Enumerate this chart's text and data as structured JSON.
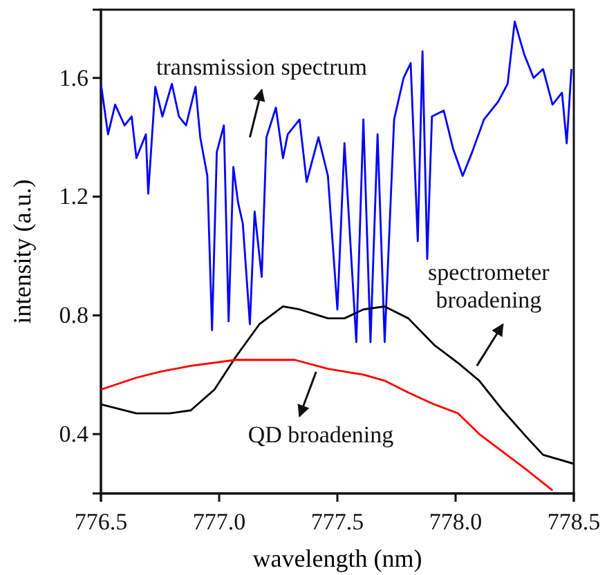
{
  "chart_data": {
    "type": "line",
    "xlabel": "wavelength (nm)",
    "ylabel": "intensity (a.u.)",
    "xlim": [
      776.5,
      778.5
    ],
    "ylim": [
      0.2,
      1.83
    ],
    "xticks": [
      776.5,
      {
        "value": 777,
        "label": "777.0"
      },
      777.5,
      {
        "value": 778,
        "label": "778.0"
      },
      778.5
    ],
    "yticks": [
      0.4,
      0.8,
      1.2,
      1.6
    ],
    "grid": false,
    "marker": "none",
    "line_style": "solid",
    "series": [
      {
        "color": "#0000ff",
        "x": [
          776.5,
          776.53,
          776.56,
          776.6,
          776.63,
          776.65,
          776.69,
          776.7,
          776.73,
          776.76,
          776.8,
          776.83,
          776.86,
          776.9,
          776.92,
          776.95,
          776.97,
          776.99,
          777.02,
          777.04,
          777.06,
          777.08,
          777.1,
          777.13,
          777.15,
          777.18,
          777.2,
          777.24,
          777.27,
          777.29,
          777.34,
          777.37,
          777.42,
          777.46,
          777.5,
          777.53,
          777.58,
          777.61,
          777.64,
          777.67,
          777.7,
          777.74,
          777.78,
          777.81,
          777.84,
          777.86,
          777.88,
          777.9,
          777.95,
          777.99,
          778.03,
          778.07,
          778.12,
          778.18,
          778.22,
          778.25,
          778.29,
          778.33,
          778.37,
          778.41,
          778.45,
          778.47,
          778.49
        ],
        "values": [
          1.58,
          1.41,
          1.51,
          1.44,
          1.47,
          1.33,
          1.41,
          1.21,
          1.57,
          1.47,
          1.58,
          1.47,
          1.44,
          1.57,
          1.4,
          1.27,
          0.75,
          1.35,
          1.44,
          0.78,
          1.3,
          1.18,
          1.11,
          0.77,
          1.15,
          0.93,
          1.4,
          1.5,
          1.33,
          1.41,
          1.46,
          1.25,
          1.4,
          1.27,
          0.82,
          1.38,
          0.71,
          1.46,
          0.71,
          1.41,
          0.71,
          1.46,
          1.6,
          1.65,
          1.05,
          1.69,
          0.99,
          1.47,
          1.49,
          1.36,
          1.27,
          1.35,
          1.46,
          1.52,
          1.58,
          1.79,
          1.68,
          1.6,
          1.63,
          1.51,
          1.55,
          1.38,
          1.63
        ]
      },
      {
        "color": "#000000",
        "x": [
          776.5,
          776.65,
          776.79,
          776.88,
          776.98,
          777.07,
          777.17,
          777.27,
          777.34,
          777.46,
          777.53,
          777.61,
          777.7,
          777.8,
          777.91,
          778.01,
          778.1,
          778.2,
          778.3,
          778.37,
          778.5
        ],
        "values": [
          0.5,
          0.47,
          0.47,
          0.48,
          0.55,
          0.66,
          0.77,
          0.83,
          0.82,
          0.79,
          0.79,
          0.82,
          0.83,
          0.79,
          0.7,
          0.64,
          0.58,
          0.48,
          0.39,
          0.33,
          0.3
        ]
      },
      {
        "color": "#ff0000",
        "x": [
          776.5,
          776.65,
          776.75,
          776.88,
          777.07,
          777.19,
          777.32,
          777.46,
          777.61,
          777.7,
          777.8,
          777.91,
          778.01,
          778.1,
          778.2,
          778.3,
          778.41
        ],
        "values": [
          0.55,
          0.59,
          0.61,
          0.63,
          0.65,
          0.65,
          0.65,
          0.62,
          0.6,
          0.58,
          0.54,
          0.5,
          0.47,
          0.4,
          0.34,
          0.28,
          0.21
        ]
      }
    ],
    "annotations": [
      "transmission spectrum",
      "spectrometer broadening",
      "QD broadening"
    ]
  }
}
